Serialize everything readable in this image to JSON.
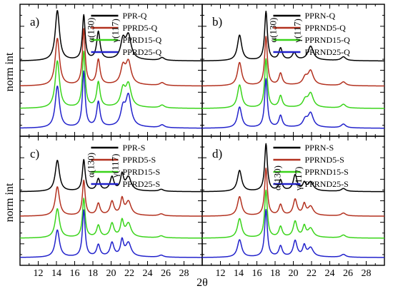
{
  "figure": {
    "xlabel": "2θ",
    "ylabel": "norm int"
  },
  "chart_data": [
    {
      "panel": "a)",
      "type": "line",
      "xlabel": "2θ",
      "ylabel": "norm int",
      "xlim": [
        10,
        30
      ],
      "xticks": [
        12,
        14,
        16,
        18,
        20,
        22,
        24,
        26,
        28
      ],
      "series_colors": [
        "#000000",
        "#b3311f",
        "#3ad41a",
        "#2222cc"
      ],
      "series": [
        {
          "name": "PPR-Q",
          "peaks": [
            [
              14.1,
              0.9
            ],
            [
              17.0,
              0.8
            ],
            [
              18.6,
              0.5
            ],
            [
              21.3,
              0.33
            ],
            [
              21.9,
              0.42
            ],
            [
              25.6,
              0.05
            ]
          ]
        },
        {
          "name": "PPRD5-Q",
          "peaks": [
            [
              14.1,
              0.85
            ],
            [
              17.0,
              1.0
            ],
            [
              18.6,
              0.45
            ],
            [
              21.3,
              0.3
            ],
            [
              21.9,
              0.4
            ],
            [
              25.6,
              0.05
            ]
          ]
        },
        {
          "name": "PPRD15-Q",
          "peaks": [
            [
              14.1,
              0.85
            ],
            [
              17.0,
              1.0
            ],
            [
              18.6,
              0.45
            ],
            [
              21.3,
              0.3
            ],
            [
              21.9,
              0.4
            ],
            [
              25.6,
              0.05
            ]
          ]
        },
        {
          "name": "PPRD25-Q",
          "peaks": [
            [
              14.1,
              0.75
            ],
            [
              17.0,
              1.0
            ],
            [
              18.6,
              0.45
            ],
            [
              21.3,
              0.3
            ],
            [
              21.9,
              0.55
            ],
            [
              25.6,
              0.05
            ]
          ]
        }
      ],
      "annotations": [
        "α(130)",
        "γ(117)"
      ]
    },
    {
      "panel": "b)",
      "type": "line",
      "xlabel": "2θ",
      "ylabel": "norm int",
      "xlim": [
        10,
        30
      ],
      "xticks": [
        12,
        14,
        16,
        18,
        20,
        22,
        24,
        26,
        28
      ],
      "series_colors": [
        "#000000",
        "#b3311f",
        "#3ad41a",
        "#2222cc"
      ],
      "series": [
        {
          "name": "PPRN-Q",
          "peaks": [
            [
              14.1,
              0.55
            ],
            [
              17.0,
              1.05
            ],
            [
              18.6,
              0.25
            ],
            [
              20.1,
              0.15
            ],
            [
              21.9,
              0.3
            ],
            [
              25.5,
              0.08
            ]
          ]
        },
        {
          "name": "PPRND5-Q",
          "peaks": [
            [
              14.1,
              0.5
            ],
            [
              17.0,
              1.05
            ],
            [
              18.6,
              0.25
            ],
            [
              21.3,
              0.15
            ],
            [
              21.9,
              0.3
            ],
            [
              25.5,
              0.08
            ]
          ]
        },
        {
          "name": "PPRND15-Q",
          "peaks": [
            [
              14.1,
              0.5
            ],
            [
              17.0,
              1.05
            ],
            [
              18.6,
              0.25
            ],
            [
              21.3,
              0.15
            ],
            [
              21.9,
              0.3
            ],
            [
              25.5,
              0.08
            ]
          ]
        },
        {
          "name": "PPRND25-Q",
          "peaks": [
            [
              14.1,
              0.45
            ],
            [
              17.0,
              1.05
            ],
            [
              18.6,
              0.25
            ],
            [
              21.3,
              0.15
            ],
            [
              21.9,
              0.3
            ],
            [
              25.5,
              0.08
            ]
          ]
        }
      ],
      "annotations": [
        "α(130)",
        "γ(117)"
      ]
    },
    {
      "panel": "c)",
      "type": "line",
      "xlabel": "2θ",
      "ylabel": "norm int",
      "xlim": [
        10,
        30
      ],
      "xticks": [
        12,
        14,
        16,
        18,
        20,
        22,
        24,
        26,
        28
      ],
      "series_colors": [
        "#000000",
        "#b3311f",
        "#3ad41a",
        "#2222cc"
      ],
      "series": [
        {
          "name": "PPR-S",
          "peaks": [
            [
              14.1,
              0.8
            ],
            [
              17.0,
              0.8
            ],
            [
              18.6,
              0.3
            ],
            [
              20.1,
              0.35
            ],
            [
              21.2,
              0.4
            ],
            [
              21.9,
              0.35
            ],
            [
              25.5,
              0.05
            ]
          ]
        },
        {
          "name": "PPRD5-S",
          "peaks": [
            [
              14.1,
              0.75
            ],
            [
              17.0,
              0.9
            ],
            [
              18.6,
              0.3
            ],
            [
              20.1,
              0.35
            ],
            [
              21.2,
              0.4
            ],
            [
              21.9,
              0.35
            ],
            [
              25.5,
              0.05
            ]
          ]
        },
        {
          "name": "PPRD15-S",
          "peaks": [
            [
              14.1,
              0.75
            ],
            [
              17.0,
              1.0
            ],
            [
              18.6,
              0.3
            ],
            [
              20.1,
              0.35
            ],
            [
              21.2,
              0.4
            ],
            [
              21.9,
              0.35
            ],
            [
              25.5,
              0.05
            ]
          ]
        },
        {
          "name": "PPRD25-S",
          "peaks": [
            [
              14.1,
              0.7
            ],
            [
              17.0,
              1.2
            ],
            [
              18.6,
              0.3
            ],
            [
              20.1,
              0.35
            ],
            [
              21.2,
              0.4
            ],
            [
              21.9,
              0.35
            ],
            [
              25.5,
              0.05
            ]
          ]
        }
      ],
      "annotations": [
        "α(130)",
        "γ(117)"
      ]
    },
    {
      "panel": "d)",
      "type": "line",
      "xlabel": "2θ",
      "ylabel": "norm int",
      "xlim": [
        10,
        30
      ],
      "xticks": [
        12,
        14,
        16,
        18,
        20,
        22,
        24,
        26,
        28
      ],
      "series_colors": [
        "#000000",
        "#b3311f",
        "#3ad41a",
        "#2222cc"
      ],
      "series": [
        {
          "name": "PPRN-S",
          "peaks": [
            [
              14.1,
              0.6
            ],
            [
              17.0,
              1.35
            ],
            [
              18.6,
              0.3
            ],
            [
              20.2,
              0.45
            ],
            [
              21.2,
              0.2
            ],
            [
              21.9,
              0.25
            ],
            [
              25.5,
              0.08
            ]
          ]
        },
        {
          "name": "PPRND5-S",
          "peaks": [
            [
              14.1,
              0.55
            ],
            [
              17.0,
              1.35
            ],
            [
              18.6,
              0.3
            ],
            [
              20.2,
              0.45
            ],
            [
              21.2,
              0.3
            ],
            [
              21.9,
              0.25
            ],
            [
              25.5,
              0.08
            ]
          ]
        },
        {
          "name": "PPRND15-S",
          "peaks": [
            [
              14.1,
              0.55
            ],
            [
              17.0,
              1.35
            ],
            [
              18.6,
              0.3
            ],
            [
              20.2,
              0.45
            ],
            [
              21.2,
              0.3
            ],
            [
              21.9,
              0.25
            ],
            [
              25.5,
              0.08
            ]
          ]
        },
        {
          "name": "PPRND25-S",
          "peaks": [
            [
              14.1,
              0.5
            ],
            [
              17.0,
              1.35
            ],
            [
              18.6,
              0.3
            ],
            [
              20.2,
              0.45
            ],
            [
              21.2,
              0.3
            ],
            [
              21.9,
              0.25
            ],
            [
              25.5,
              0.08
            ]
          ]
        }
      ],
      "annotations": [
        "α(130)",
        "γ(117)"
      ]
    }
  ]
}
